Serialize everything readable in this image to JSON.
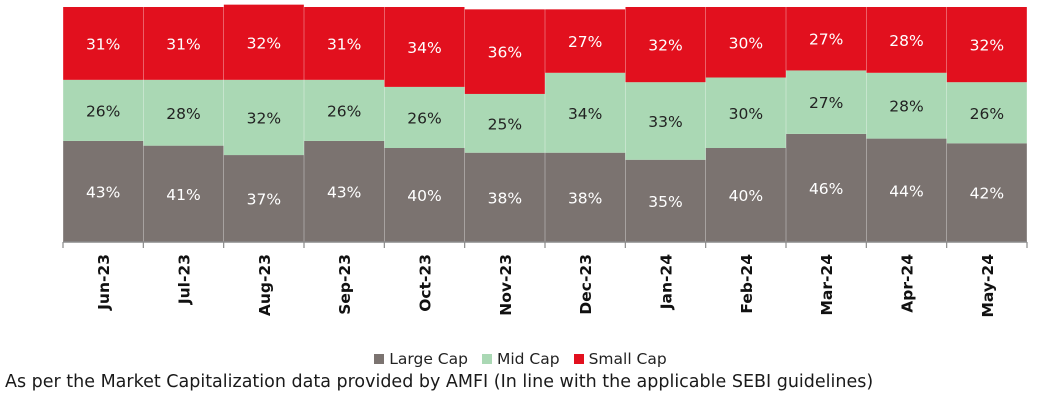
{
  "chart_data": {
    "type": "bar",
    "stacked": true,
    "percent_stacked": true,
    "categories": [
      "Jun-23",
      "Jul-23",
      "Aug-23",
      "Sep-23",
      "Oct-23",
      "Nov-23",
      "Dec-23",
      "Jan-24",
      "Feb-24",
      "Mar-24",
      "Apr-24",
      "May-24"
    ],
    "series": [
      {
        "name": "Large Cap",
        "color": "#7b7370",
        "values": [
          43,
          41,
          37,
          43,
          40,
          38,
          38,
          35,
          40,
          46,
          44,
          42
        ]
      },
      {
        "name": "Mid Cap",
        "color": "#aad8b4",
        "values": [
          26,
          28,
          32,
          26,
          26,
          25,
          34,
          33,
          30,
          27,
          28,
          26
        ]
      },
      {
        "name": "Small Cap",
        "color": "#e2101e",
        "values": [
          31,
          31,
          32,
          31,
          34,
          36,
          27,
          32,
          30,
          27,
          28,
          32
        ]
      }
    ],
    "value_suffix": "%",
    "ylim": [
      0,
      100
    ],
    "grid": false,
    "legend_position": "bottom",
    "x_tick_rotation": "vertical"
  },
  "legend": {
    "items": [
      {
        "label": "Large Cap",
        "color": "#7b7370"
      },
      {
        "label": "Mid Cap",
        "color": "#aad8b4"
      },
      {
        "label": "Small Cap",
        "color": "#e2101e"
      }
    ]
  },
  "footnote": "As per the Market Capitalization data provided by AMFI (In line with the applicable SEBI guidelines)"
}
